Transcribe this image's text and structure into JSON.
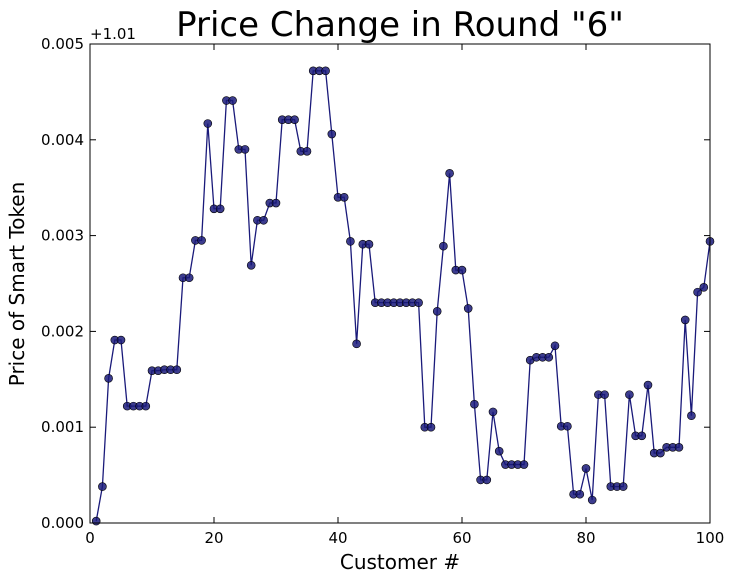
{
  "chart_data": {
    "type": "line",
    "title": "Price Change in Round \"6\"",
    "xlabel": "Customer #",
    "ylabel": "Price of Smart Token",
    "y_offset_label": "+1.01",
    "xlim": [
      0,
      100
    ],
    "ylim": [
      0.0,
      0.005
    ],
    "x_ticks": [
      0,
      20,
      40,
      60,
      80,
      100
    ],
    "x_tick_labels": [
      "0",
      "20",
      "40",
      "60",
      "80",
      "100"
    ],
    "y_ticks": [
      0.0,
      0.001,
      0.002,
      0.003,
      0.004,
      0.005
    ],
    "y_tick_labels": [
      "0.000",
      "0.001",
      "0.002",
      "0.003",
      "0.004",
      "0.005"
    ],
    "grid": false,
    "colors": {
      "line": "#1a1a7a",
      "marker": "#1a1a7a"
    },
    "series": [
      {
        "x": [
          1,
          2,
          3,
          4,
          5,
          6,
          7,
          8,
          9,
          10,
          11,
          12,
          13,
          14,
          15,
          16,
          17,
          18,
          19,
          20,
          21,
          22,
          23,
          24,
          25,
          26,
          27,
          28,
          29,
          30,
          31,
          32,
          33,
          34,
          35,
          36,
          37,
          38,
          39,
          40,
          41,
          42,
          43,
          44,
          45,
          46,
          47,
          48,
          49,
          50,
          51,
          52,
          53,
          54,
          55,
          56,
          57,
          58,
          59,
          60,
          61,
          62,
          63,
          64,
          65,
          66,
          67,
          68,
          69,
          70,
          71,
          72,
          73,
          74,
          75,
          76,
          77,
          78,
          79,
          80,
          81,
          82,
          83,
          84,
          85,
          86,
          87,
          88,
          89,
          90,
          91,
          92,
          93,
          94,
          95,
          96,
          97,
          98,
          99,
          100
        ],
        "values": [
          2e-05,
          0.00038,
          0.00151,
          0.00191,
          0.00191,
          0.00122,
          0.00122,
          0.00122,
          0.00122,
          0.00159,
          0.00159,
          0.0016,
          0.0016,
          0.0016,
          0.00256,
          0.00256,
          0.00295,
          0.00295,
          0.00417,
          0.00328,
          0.00328,
          0.00441,
          0.00441,
          0.0039,
          0.0039,
          0.00269,
          0.00316,
          0.00316,
          0.00334,
          0.00334,
          0.00421,
          0.00421,
          0.00421,
          0.00388,
          0.00388,
          0.00472,
          0.00472,
          0.00472,
          0.00406,
          0.0034,
          0.0034,
          0.00294,
          0.00187,
          0.00291,
          0.00291,
          0.0023,
          0.0023,
          0.0023,
          0.0023,
          0.0023,
          0.0023,
          0.0023,
          0.0023,
          0.001,
          0.001,
          0.00221,
          0.00289,
          0.00365,
          0.00264,
          0.00264,
          0.00224,
          0.00124,
          0.00045,
          0.00045,
          0.00116,
          0.00075,
          0.00061,
          0.00061,
          0.00061,
          0.00061,
          0.0017,
          0.00173,
          0.00173,
          0.00173,
          0.00185,
          0.00101,
          0.00101,
          0.0003,
          0.0003,
          0.00057,
          0.00024,
          0.00134,
          0.00134,
          0.00038,
          0.00038,
          0.00038,
          0.00134,
          0.00091,
          0.00091,
          0.00144,
          0.00073,
          0.00073,
          0.00079,
          0.00079,
          0.00079,
          0.00212,
          0.00112,
          0.00241,
          0.00246,
          0.00294
        ]
      }
    ]
  }
}
